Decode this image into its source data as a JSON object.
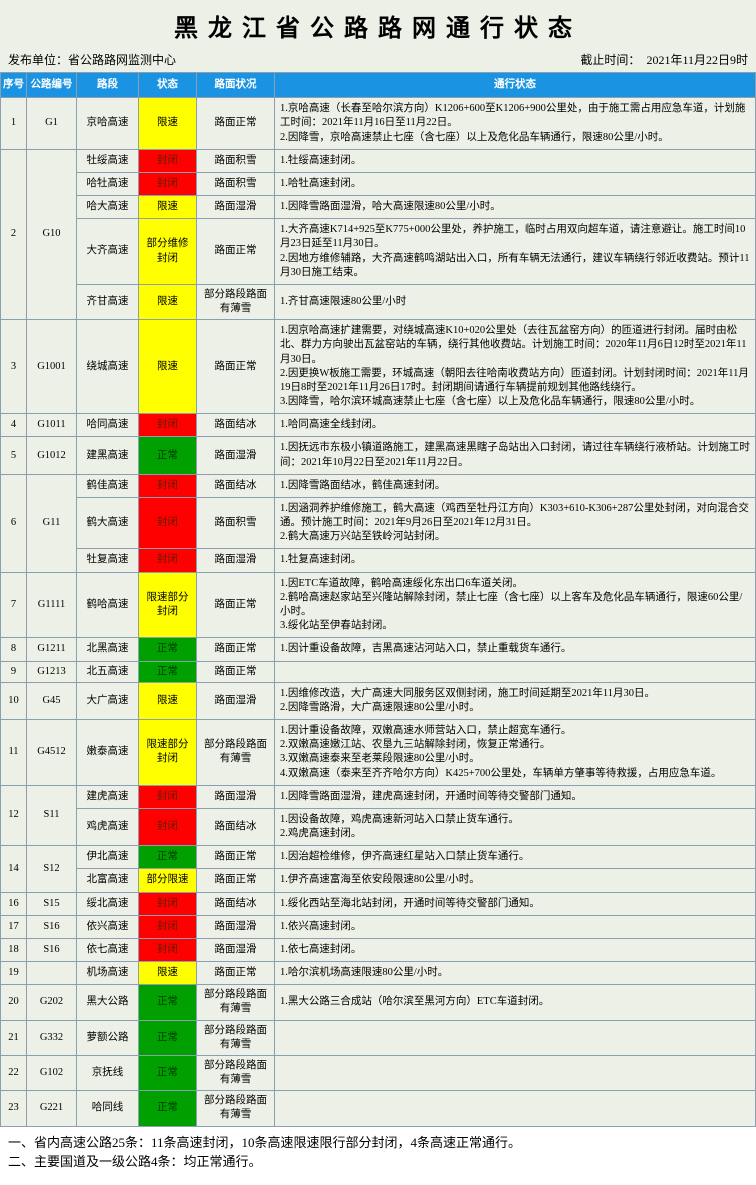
{
  "title": "黑龙江省公路路网通行状态",
  "publisher_label": "发布单位：",
  "publisher": "省公路路网监测中心",
  "asof_label": "截止时间：",
  "asof": "2021年11月22日9时",
  "columns": [
    "序号",
    "公路编号",
    "路段",
    "状态",
    "路面状况",
    "通行状态"
  ],
  "status_classes": {
    "限速": "st-limit",
    "封闭": "st-close",
    "正常": "st-normal",
    "部分维修封闭": "st-limit",
    "限速部分封闭": "st-limit",
    "部分限速": "st-limit"
  },
  "rows": [
    {
      "idx": "1",
      "code": "G1",
      "seg": "京哈高速",
      "status": "限速",
      "cond": "路面正常",
      "desc": "1.京哈高速（长春至哈尔滨方向）K1206+600至K1206+900公里处，由于施工需占用应急车道，计划施工时间：2021年11月16日至11月22日。\n2.因降雪，京哈高速禁止七座（含七座）以上及危化品车辆通行，限速80公里/小时。"
    },
    {
      "idx": "2",
      "code": "G10",
      "code_rowspan": 5,
      "idx_rowspan": 5,
      "seg": "牡绥高速",
      "status": "封闭",
      "cond": "路面积雪",
      "desc": "1.牡绥高速封闭。"
    },
    {
      "seg": "哈牡高速",
      "status": "封闭",
      "cond": "路面积雪",
      "desc": "1.哈牡高速封闭。"
    },
    {
      "seg": "哈大高速",
      "status": "限速",
      "cond": "路面湿滑",
      "desc": "1.因降雪路面湿滑，哈大高速限速80公里/小时。"
    },
    {
      "seg": "大齐高速",
      "status": "部分维修封闭",
      "cond": "路面正常",
      "desc": "1.大齐高速K714+925至K775+000公里处，养护施工，临时占用双向超车道，请注意避让。施工时间10月23日延至11月30日。\n2.因地方维修辅路，大齐高速鹤鸣湖站出入口，所有车辆无法通行，建议车辆绕行邻近收费站。预计11月30日施工结束。"
    },
    {
      "seg": "齐甘高速",
      "status": "限速",
      "cond": "部分路段路面有薄雪",
      "desc": "1.齐甘高速限速80公里/小时"
    },
    {
      "idx": "3",
      "code": "G1001",
      "seg": "绕城高速",
      "status": "限速",
      "cond": "路面正常",
      "desc": "1.因京哈高速扩建需要，对绕城高速K10+020公里处（去往瓦盆窑方向）的匝道进行封闭。届时由松北、群力方向驶出瓦盆窑站的车辆，绕行其他收费站。计划施工时间：2020年11月6日12时至2021年11月30日。\n2.因更换W板施工需要，环城高速（朝阳去往哈南收费站方向）匝道封闭。计划封闭时间：2021年11月19日8时至2021年11月26日17时。封闭期间请通行车辆提前规划其他路线绕行。\n3.因降雪，哈尔滨环城高速禁止七座（含七座）以上及危化品车辆通行，限速80公里/小时。"
    },
    {
      "idx": "4",
      "code": "G1011",
      "seg": "哈同高速",
      "status": "封闭",
      "cond": "路面结冰",
      "desc": "1.哈同高速全线封闭。"
    },
    {
      "idx": "5",
      "code": "G1012",
      "seg": "建黑高速",
      "status": "正常",
      "cond": "路面湿滑",
      "desc": "1.因抚远市东极小镇道路施工，建黑高速黑瞎子岛站出入口封闭，请过往车辆绕行液桥站。计划施工时间：2021年10月22日至2021年11月22日。"
    },
    {
      "idx": "6",
      "code": "G11",
      "code_rowspan": 3,
      "idx_rowspan": 3,
      "seg": "鹤佳高速",
      "status": "封闭",
      "cond": "路面结冰",
      "desc": "1.因降雪路面结冰，鹤佳高速封闭。"
    },
    {
      "seg": "鹤大高速",
      "status": "封闭",
      "cond": "路面积雪",
      "desc": "1.因涵洞养护维修施工，鹤大高速（鸡西至牡丹江方向）K303+610-K306+287公里处封闭，对向混合交通。预计施工时间：2021年9月26日至2021年12月31日。\n2.鹤大高速万兴站至铁岭河站封闭。"
    },
    {
      "seg": "牡复高速",
      "status": "封闭",
      "cond": "路面湿滑",
      "desc": "1.牡复高速封闭。"
    },
    {
      "idx": "7",
      "code": "G1111",
      "seg": "鹤哈高速",
      "status": "限速部分封闭",
      "cond": "路面正常",
      "desc": "1.因ETC车道故障，鹤哈高速绥化东出口6车道关闭。\n2.鹤哈高速赵家站至兴隆站解除封闭，禁止七座（含七座）以上客车及危化品车辆通行，限速60公里/小时。\n3.绥化站至伊春站封闭。"
    },
    {
      "idx": "8",
      "code": "G1211",
      "seg": "北黑高速",
      "status": "正常",
      "cond": "路面正常",
      "desc": "1.因计重设备故障，吉黑高速沾河站入口，禁止重载货车通行。"
    },
    {
      "idx": "9",
      "code": "G1213",
      "seg": "北五高速",
      "status": "正常",
      "cond": "路面正常",
      "desc": ""
    },
    {
      "idx": "10",
      "code": "G45",
      "seg": "大广高速",
      "status": "限速",
      "cond": "路面湿滑",
      "desc": "1.因维修改造，大广高速大同服务区双侧封闭，施工时间延期至2021年11月30日。\n2.因降雪路滑，大广高速限速80公里/小时。"
    },
    {
      "idx": "11",
      "code": "G4512",
      "seg": "嫩泰高速",
      "status": "限速部分封闭",
      "cond": "部分路段路面有薄雪",
      "desc": "1.因计重设备故障，双嫩高速水师营站入口，禁止超宽车通行。\n2.双嫩高速嫩江站、农垦九三站解除封闭，恢复正常通行。\n3.双嫩高速泰来至老莱段限速80公里/小时。\n4.双嫩高速（泰来至齐齐哈尔方向）K425+700公里处，车辆单方肇事等待救援，占用应急车道。"
    },
    {
      "idx": "12",
      "code": "S11",
      "code_rowspan": 2,
      "idx_rowspan": 2,
      "seg": "建虎高速",
      "status": "封闭",
      "cond": "路面湿滑",
      "desc": "1.因降雪路面湿滑，建虎高速封闭，开通时间等待交警部门通知。"
    },
    {
      "seg": "鸡虎高速",
      "status": "封闭",
      "cond": "路面结冰",
      "desc": "1.因设备故障，鸡虎高速新河站入口禁止货车通行。\n2.鸡虎高速封闭。"
    },
    {
      "idx": "14",
      "code": "S12",
      "code_rowspan": 2,
      "idx_rowspan": 2,
      "seg": "伊北高速",
      "status": "正常",
      "cond": "路面正常",
      "desc": "1.因治超检维修，伊齐高速红星站入口禁止货车通行。"
    },
    {
      "seg": "北富高速",
      "status": "部分限速",
      "cond": "路面正常",
      "desc": "1.伊齐高速富海至依安段限速80公里/小时。"
    },
    {
      "idx": "16",
      "code": "S15",
      "seg": "绥北高速",
      "status": "封闭",
      "cond": "路面结冰",
      "desc": "1.绥化西站至海北站封闭，开通时间等待交警部门通知。"
    },
    {
      "idx": "17",
      "code": "S16",
      "seg": "依兴高速",
      "status": "封闭",
      "cond": "路面湿滑",
      "desc": "1.依兴高速封闭。"
    },
    {
      "idx": "18",
      "code": "S16",
      "seg": "依七高速",
      "status": "封闭",
      "cond": "路面湿滑",
      "desc": "1.依七高速封闭。"
    },
    {
      "idx": "19",
      "code": "",
      "seg": "机场高速",
      "status": "限速",
      "cond": "路面正常",
      "desc": "1.哈尔滨机场高速限速80公里/小时。"
    },
    {
      "idx": "20",
      "code": "G202",
      "seg": "黑大公路",
      "status": "正常",
      "cond": "部分路段路面有薄雪",
      "desc": "1.黑大公路三合成站（哈尔滨至黑河方向）ETC车道封闭。"
    },
    {
      "idx": "21",
      "code": "G332",
      "seg": "萝额公路",
      "status": "正常",
      "cond": "部分路段路面有薄雪",
      "desc": ""
    },
    {
      "idx": "22",
      "code": "G102",
      "seg": "京抚线",
      "status": "正常",
      "cond": "部分路段路面有薄雪",
      "desc": ""
    },
    {
      "idx": "23",
      "code": "G221",
      "seg": "哈同线",
      "status": "正常",
      "cond": "部分路段路面有薄雪",
      "desc": ""
    }
  ],
  "footer": [
    "一、省内高速公路25条：11条高速封闭，10条高速限速限行部分封闭，4条高速正常通行。",
    "二、主要国道及一级公路4条：均正常通行。"
  ]
}
